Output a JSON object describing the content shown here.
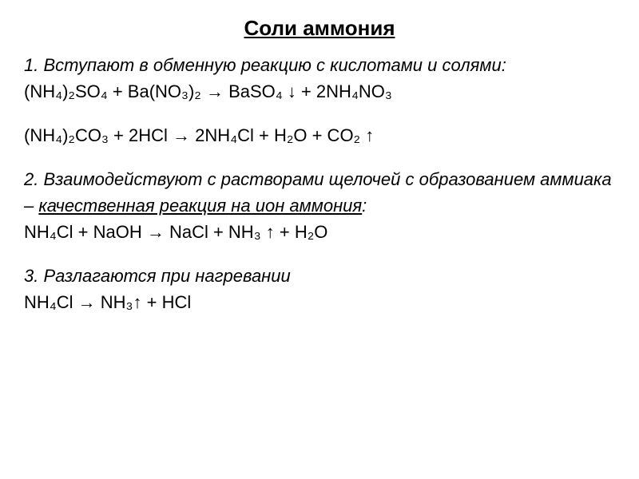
{
  "title": "Соли аммония",
  "section1": {
    "intro": "1. Вступают в обменную реакцию с кислотами и солями:",
    "eq1": "(NH₄)₂SO₄ + Ba(NO₃)₂ → BaSO₄ ↓ + 2NH₄NO₃",
    "eq2": "(NH₄)₂CO₃ + 2HCl → 2NH₄Cl + H₂O + CO₂ ↑"
  },
  "section2": {
    "intro_part1": "2. Взаимодействуют с растворами щелочей с образованием аммиака – ",
    "intro_underlined": "качественная реакция на ион аммония",
    "intro_part2": ":",
    "eq1": "NH₄Cl + NaOH → NaCl + NH₃ ↑ + H₂O"
  },
  "section3": {
    "intro": "3. Разлагаются при нагревании",
    "eq1": "NH₄Cl → NH₃↑ + HCl"
  },
  "colors": {
    "text": "#000000",
    "background": "#ffffff"
  },
  "typography": {
    "title_fontsize": 26,
    "body_fontsize": 22,
    "font_family": "Arial"
  }
}
